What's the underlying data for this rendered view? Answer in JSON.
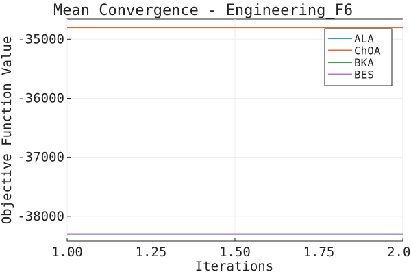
{
  "chart_data": {
    "type": "line",
    "title": "Mean Convergence - Engineering_F6",
    "xlabel": "Iterations",
    "ylabel": "Objective Function Value",
    "xlim": [
      1.0,
      2.0
    ],
    "ylim": [
      -38420,
      -34660
    ],
    "grid": true,
    "legend_position": "top-right",
    "x_ticks": [
      1.0,
      1.25,
      1.5,
      1.75,
      2.0
    ],
    "x_tick_labels": [
      "1.00",
      "1.25",
      "1.50",
      "1.75",
      "2.00"
    ],
    "y_ticks": [
      -35000,
      -36000,
      -37000,
      -38000
    ],
    "y_tick_labels": [
      "-35000",
      "-36000",
      "-37000",
      "-38000"
    ],
    "series": [
      {
        "name": "ALA",
        "color": "#1f9fdc",
        "x": [
          1,
          2
        ],
        "y": [
          -38300,
          -38300
        ]
      },
      {
        "name": "ChOA",
        "color": "#e06a3c",
        "x": [
          1,
          2
        ],
        "y": [
          -34800,
          -34800
        ]
      },
      {
        "name": "BKA",
        "color": "#3aa04a",
        "x": [
          1,
          2
        ],
        "y": [
          -38300,
          -38300
        ]
      },
      {
        "name": "BES",
        "color": "#b874d4",
        "x": [
          1,
          2
        ],
        "y": [
          -38300,
          -38300
        ]
      }
    ]
  }
}
